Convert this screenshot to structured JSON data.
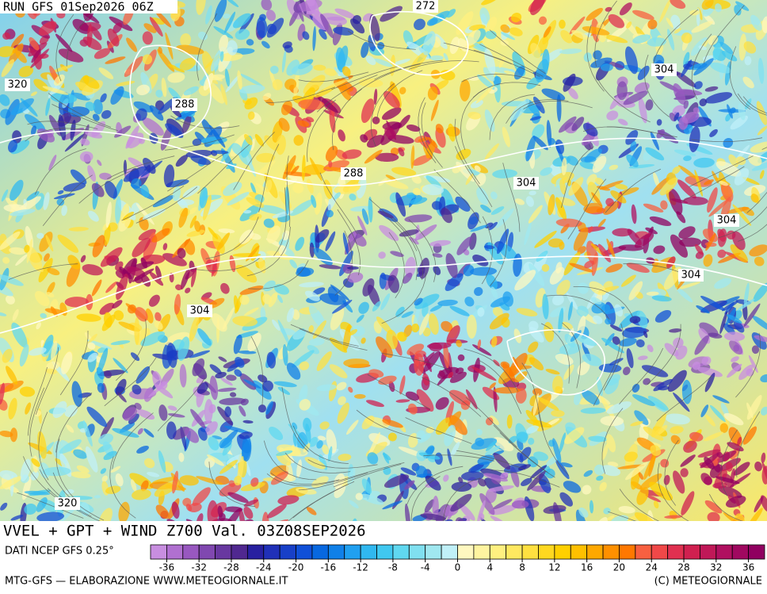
{
  "header": {
    "run": "RUN GFS 01Sep2026 06Z"
  },
  "map": {
    "contour_labels": [
      272,
      288,
      320,
      304,
      288,
      304,
      304,
      304,
      304,
      320
    ]
  },
  "footer": {
    "title": "VVEL + GPT + WIND Z700 Val. 03Z08SEP2026",
    "source": "DATI NCEP GFS 0.25°",
    "credit": "MTG-GFS — ELABORAZIONE WWW.METEOGIORNALE.IT",
    "copyright": "(C) METEOGIORNALE"
  },
  "colorbar": {
    "range": [
      -38,
      38
    ],
    "colors": [
      "#c88ee0",
      "#b070d0",
      "#9858c0",
      "#8048b0",
      "#6838a0",
      "#502890",
      "#2820a0",
      "#2030b8",
      "#1840c8",
      "#1050d8",
      "#0868e0",
      "#1080e8",
      "#20a0f0",
      "#30b8f0",
      "#40c8f0",
      "#60d8f0",
      "#80e0f0",
      "#a0e8f0",
      "#c0f0f8",
      "#fff8c0",
      "#fff4a0",
      "#fff080",
      "#ffe860",
      "#ffe040",
      "#ffd820",
      "#ffd000",
      "#ffc000",
      "#ffa800",
      "#ff9000",
      "#ff7800",
      "#f86040",
      "#f04848",
      "#e03050",
      "#d02050",
      "#c01858",
      "#b01060",
      "#a00860",
      "#900060"
    ],
    "ticks": [
      -36,
      -32,
      -28,
      -24,
      -20,
      -16,
      -12,
      -8,
      -4,
      0,
      4,
      8,
      12,
      16,
      20,
      24,
      28,
      32,
      36
    ]
  }
}
